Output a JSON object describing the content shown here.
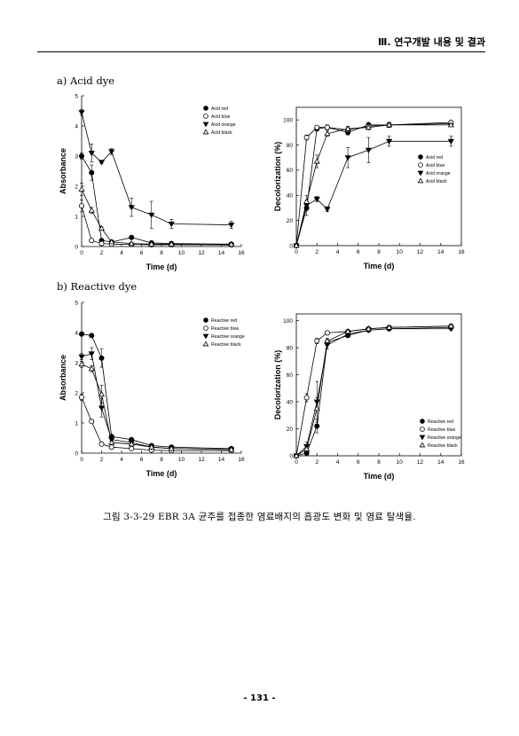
{
  "header": "Ⅲ. 연구개발 내용 및 결과",
  "sections": {
    "a": "a) Acid dye",
    "b": "b) Reactive dye"
  },
  "caption": "그림 3-3-29 EBR 3A 균주를 접종한 염료배지의 흡광도 변화 및 염료 탈색율.",
  "page_number": "- 131 -",
  "chart_data": [
    {
      "type": "line",
      "xlabel": "Time (d)",
      "ylabel": "Absorbance",
      "xlim": [
        0,
        16
      ],
      "ylim": [
        0,
        5
      ],
      "xticks": [
        0,
        2,
        4,
        6,
        8,
        10,
        12,
        14,
        16
      ],
      "yticks": [
        0,
        1,
        2,
        3,
        4,
        5
      ],
      "legend_position": "top-right",
      "frame": "left-bottom",
      "x": [
        0,
        1,
        2,
        3,
        5,
        7,
        9,
        15
      ],
      "series": [
        {
          "name": "Acid red",
          "marker": "filled-circle",
          "values": [
            3.0,
            2.45,
            0.2,
            0.15,
            0.3,
            0.12,
            0.1,
            0.08
          ],
          "errors": [
            0.1,
            0.25,
            0.05,
            0.05,
            0.05,
            0.05,
            0.05,
            0.05
          ]
        },
        {
          "name": "Acid blue",
          "marker": "open-circle",
          "values": [
            1.35,
            0.2,
            0.1,
            0.08,
            0.07,
            0.06,
            0.06,
            0.05
          ],
          "errors": [
            0.2,
            0.05,
            0.03,
            0.03,
            0.03,
            0.03,
            0.03,
            0.03
          ]
        },
        {
          "name": "Acid orange",
          "marker": "filled-triangle-down",
          "values": [
            4.45,
            3.1,
            2.8,
            3.15,
            1.3,
            1.05,
            0.75,
            0.72
          ],
          "errors": [
            0.1,
            0.3,
            0.05,
            0.1,
            0.3,
            0.45,
            0.15,
            0.12
          ]
        },
        {
          "name": "Acid black",
          "marker": "open-triangle-up",
          "values": [
            1.9,
            1.2,
            0.6,
            0.15,
            0.1,
            0.08,
            0.08,
            0.07
          ],
          "errors": [
            0.2,
            0.1,
            0.05,
            0.03,
            0.03,
            0.03,
            0.03,
            0.03
          ]
        }
      ]
    },
    {
      "type": "line",
      "xlabel": "Time (d)",
      "ylabel": "Decolorization (%)",
      "xlim": [
        0,
        16
      ],
      "ylim": [
        0,
        110
      ],
      "xticks": [
        0,
        2,
        4,
        6,
        8,
        10,
        12,
        14,
        16
      ],
      "yticks": [
        0,
        20,
        40,
        60,
        80,
        100
      ],
      "legend_position": "right",
      "frame": "box",
      "x": [
        0,
        1,
        2,
        3,
        5,
        7,
        9,
        15
      ],
      "series": [
        {
          "name": "Acid red",
          "marker": "filled-circle",
          "values": [
            0,
            30,
            93,
            94,
            90,
            96,
            96,
            97
          ],
          "errors": [
            0,
            6,
            2,
            2,
            2,
            2,
            2,
            1
          ]
        },
        {
          "name": "Acid blue",
          "marker": "open-circle",
          "values": [
            0,
            86,
            94,
            94,
            92,
            95,
            96,
            98
          ],
          "errors": [
            0,
            2,
            1,
            1,
            2,
            2,
            1,
            1
          ]
        },
        {
          "name": "Acid orange",
          "marker": "filled-triangle-down",
          "values": [
            0,
            32,
            37,
            29,
            70,
            76,
            83,
            83
          ],
          "errors": [
            0,
            4,
            2,
            2,
            8,
            10,
            4,
            4
          ]
        },
        {
          "name": "Acid black",
          "marker": "open-triangle-up",
          "values": [
            0,
            35,
            67,
            89,
            93,
            94,
            96,
            96
          ],
          "errors": [
            0,
            5,
            5,
            2,
            2,
            2,
            2,
            1
          ]
        }
      ]
    },
    {
      "type": "line",
      "xlabel": "Time (d)",
      "ylabel": "Absorbance",
      "xlim": [
        0,
        16
      ],
      "ylim": [
        0,
        5
      ],
      "xticks": [
        0,
        2,
        4,
        6,
        8,
        10,
        12,
        14,
        16
      ],
      "yticks": [
        0,
        1,
        2,
        3,
        4,
        5
      ],
      "legend_position": "top-right",
      "frame": "left-bottom",
      "x": [
        0,
        1,
        2,
        3,
        5,
        7,
        9,
        15
      ],
      "series": [
        {
          "name": "Reactive red",
          "marker": "filled-circle",
          "values": [
            3.95,
            3.9,
            3.15,
            0.55,
            0.45,
            0.25,
            0.2,
            0.15
          ],
          "errors": [
            0.05,
            0.05,
            0.3,
            0.05,
            0.05,
            0.05,
            0.03,
            0.03
          ]
        },
        {
          "name": "Reactive blue",
          "marker": "open-circle",
          "values": [
            1.85,
            1.05,
            0.3,
            0.2,
            0.15,
            0.1,
            0.08,
            0.08
          ],
          "errors": [
            0.1,
            0.05,
            0.05,
            0.03,
            0.03,
            0.03,
            0.03,
            0.03
          ]
        },
        {
          "name": "Reactive orange",
          "marker": "filled-triangle-down",
          "values": [
            3.2,
            3.3,
            1.5,
            0.45,
            0.35,
            0.2,
            0.15,
            0.12
          ],
          "errors": [
            0.1,
            0.2,
            0.3,
            0.05,
            0.05,
            0.03,
            0.03,
            0.03
          ]
        },
        {
          "name": "Reactive black",
          "marker": "open-triangle-up",
          "values": [
            2.95,
            2.8,
            1.95,
            0.35,
            0.3,
            0.2,
            0.15,
            0.12
          ],
          "errors": [
            0.1,
            0.1,
            0.3,
            0.05,
            0.05,
            0.03,
            0.03,
            0.03
          ]
        }
      ]
    },
    {
      "type": "line",
      "xlabel": "Time (d)",
      "ylabel": "Decolorization (%)",
      "xlim": [
        0,
        16
      ],
      "ylim": [
        0,
        105
      ],
      "xticks": [
        0,
        2,
        4,
        6,
        8,
        10,
        12,
        14,
        16
      ],
      "yticks": [
        0,
        20,
        40,
        60,
        80,
        100
      ],
      "legend_position": "bottom-right",
      "frame": "box",
      "x": [
        0,
        1,
        2,
        3,
        5,
        7,
        9,
        15
      ],
      "series": [
        {
          "name": "Reactive red",
          "marker": "filled-circle",
          "values": [
            0,
            2,
            22,
            84,
            89,
            93,
            94,
            95
          ],
          "errors": [
            0,
            1,
            5,
            2,
            1,
            1,
            1,
            1
          ]
        },
        {
          "name": "Reactive blue",
          "marker": "open-circle",
          "values": [
            0,
            43,
            85,
            91,
            92,
            94,
            95,
            96
          ],
          "errors": [
            0,
            3,
            2,
            1,
            1,
            1,
            1,
            1
          ]
        },
        {
          "name": "Reactive orange",
          "marker": "filled-triangle-down",
          "values": [
            0,
            7,
            40,
            82,
            90,
            93,
            94,
            94
          ],
          "errors": [
            0,
            3,
            15,
            3,
            2,
            1,
            1,
            1
          ]
        },
        {
          "name": "Reactive black",
          "marker": "open-triangle-up",
          "values": [
            0,
            5,
            35,
            85,
            92,
            94,
            95,
            96
          ],
          "errors": [
            0,
            3,
            8,
            2,
            1,
            1,
            1,
            1
          ]
        }
      ]
    }
  ]
}
